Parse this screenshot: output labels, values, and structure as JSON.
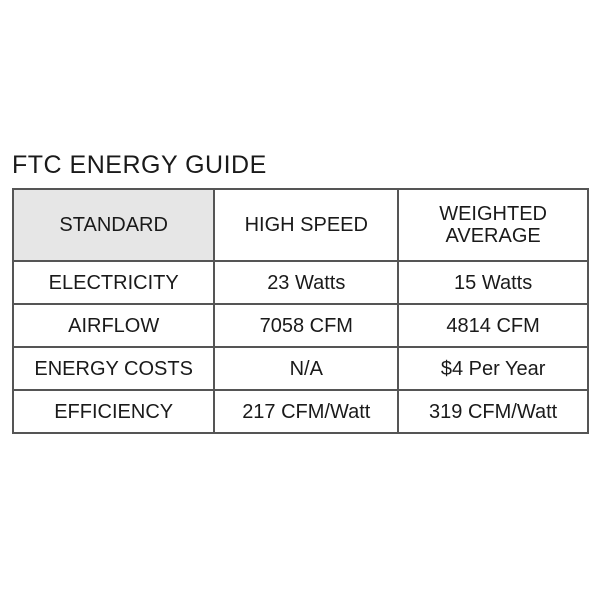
{
  "title": "FTC ENERGY GUIDE",
  "table": {
    "headers": [
      "STANDARD",
      "HIGH SPEED",
      "WEIGHTED AVERAGE"
    ],
    "header_bg": "#e6e6e6",
    "rows": [
      [
        "ELECTRICITY",
        "23 Watts",
        "15 Watts"
      ],
      [
        "AIRFLOW",
        "7058 CFM",
        "4814 CFM"
      ],
      [
        "ENERGY COSTS",
        "N/A",
        "$4 Per Year"
      ],
      [
        "EFFICIENCY",
        "217 CFM/Watt",
        "319 CFM/Watt"
      ]
    ]
  }
}
